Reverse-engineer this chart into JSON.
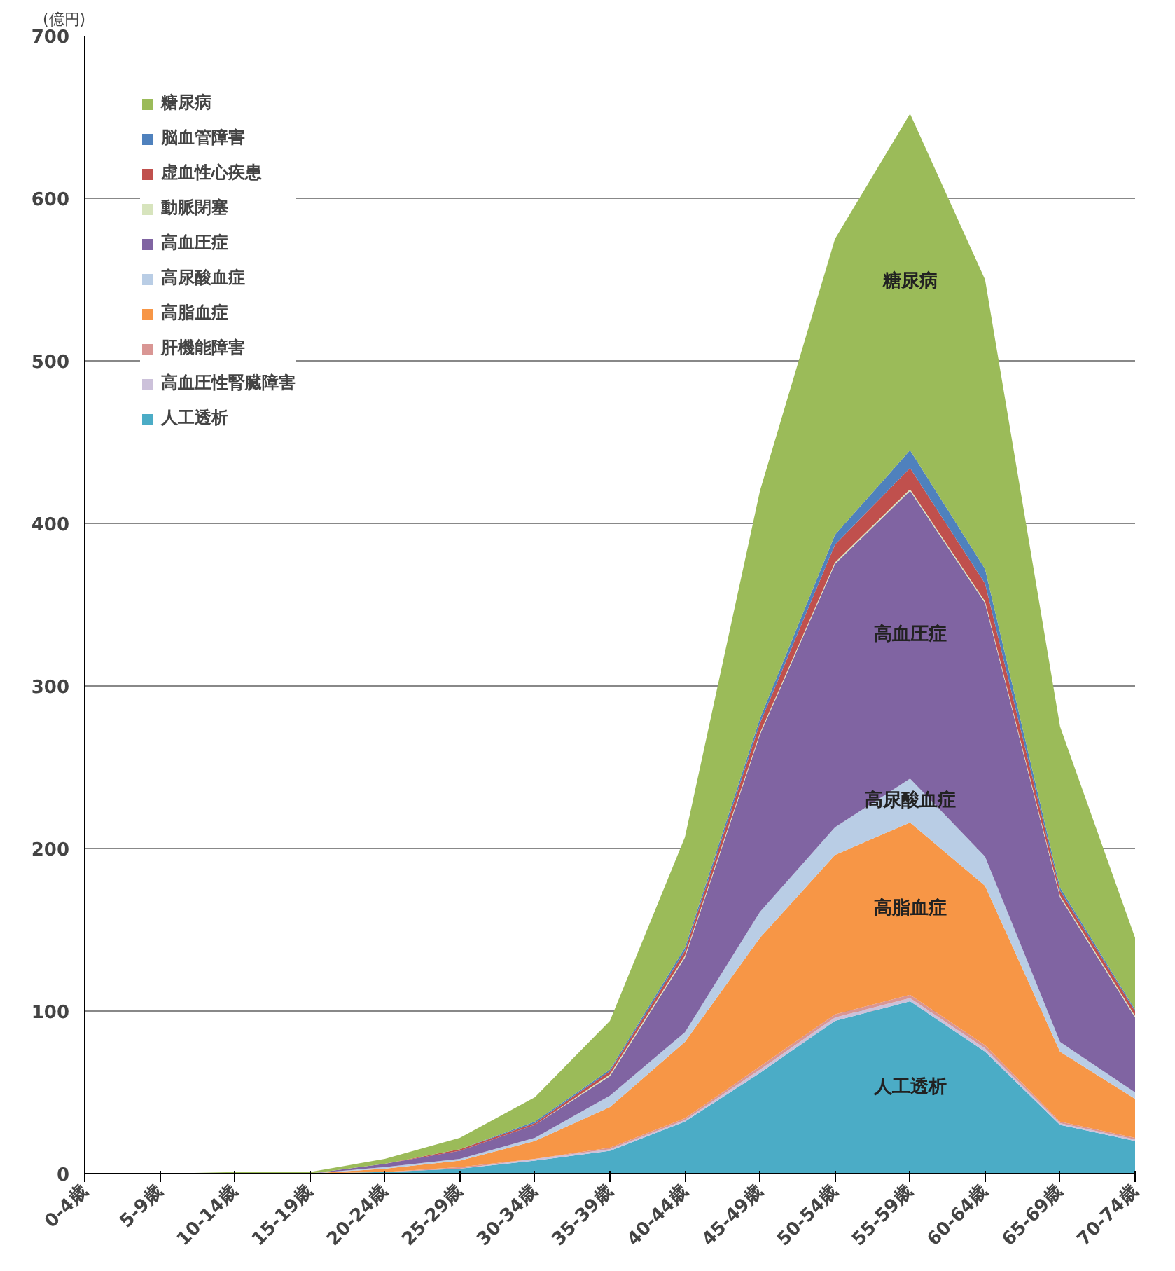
{
  "chart_data": {
    "type": "area",
    "stacked": true,
    "ylabel": "(億円)",
    "categories": [
      "0-4歳",
      "5-9歳",
      "10-14歳",
      "15-19歳",
      "20-24歳",
      "25-29歳",
      "30-34歳",
      "35-39歳",
      "40-44歳",
      "45-49歳",
      "50-54歳",
      "55-59歳",
      "60-64歳",
      "65-69歳",
      "70-74歳"
    ],
    "series": [
      {
        "name": "人工透析",
        "color": "#4bacc6",
        "values": [
          0,
          0,
          0,
          0,
          1,
          3,
          8,
          14,
          32,
          62,
          94,
          106,
          75,
          30,
          20
        ]
      },
      {
        "name": "高血圧性腎臓障害",
        "color": "#ccc1da",
        "values": [
          0,
          0,
          0,
          0,
          0,
          0,
          1,
          1,
          1,
          2,
          2,
          2,
          2,
          1,
          1
        ]
      },
      {
        "name": "肝機能障害",
        "color": "#d99694",
        "values": [
          0,
          0,
          0,
          0,
          0,
          1,
          0,
          1,
          1,
          2,
          2,
          2,
          2,
          1,
          1
        ]
      },
      {
        "name": "高脂血症",
        "color": "#f79646",
        "values": [
          0,
          0,
          0,
          0,
          2,
          4,
          11,
          25,
          47,
          79,
          98,
          106,
          98,
          43,
          24
        ]
      },
      {
        "name": "高尿酸血症",
        "color": "#b9cde5",
        "values": [
          0,
          0,
          0,
          0,
          1,
          1,
          2,
          7,
          6,
          16,
          17,
          27,
          18,
          6,
          4
        ]
      },
      {
        "name": "高血圧症",
        "color": "#8064a2",
        "values": [
          0,
          0,
          0,
          0,
          2,
          5,
          8,
          12,
          46,
          109,
          162,
          177,
          156,
          89,
          46
        ]
      },
      {
        "name": "動脈閉塞",
        "color": "#d7e4bd",
        "values": [
          0,
          0,
          0,
          0,
          0,
          0,
          0,
          1,
          1,
          1,
          1,
          1,
          1,
          1,
          1
        ]
      },
      {
        "name": "虚血性心疾患",
        "color": "#c0504d",
        "values": [
          0,
          0,
          0,
          0,
          0,
          1,
          1,
          2,
          3,
          6,
          11,
          13,
          11,
          3,
          3
        ]
      },
      {
        "name": "脳血管障害",
        "color": "#4f81bd",
        "values": [
          0,
          0,
          0,
          0,
          0,
          0,
          1,
          1,
          2,
          3,
          6,
          11,
          9,
          2,
          1
        ]
      },
      {
        "name": "糖尿病",
        "color": "#9bbb59",
        "values": [
          0,
          0,
          1,
          1,
          3,
          7,
          15,
          30,
          68,
          140,
          182,
          207,
          178,
          99,
          44
        ]
      }
    ],
    "ylim": [
      0,
      700
    ],
    "yticks": [
      0,
      100,
      200,
      300,
      400,
      500,
      600,
      700
    ],
    "grid": "y",
    "legend": "top left"
  }
}
